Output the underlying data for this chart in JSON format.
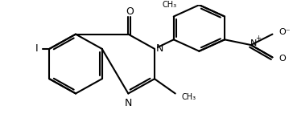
{
  "background_color": "#ffffff",
  "bond_color": "#000000",
  "lw": 1.5,
  "figw": 3.64,
  "figh": 1.52,
  "dpi": 100,
  "atoms": {
    "N_label": "N",
    "N2_label": "N",
    "O_label": "O",
    "I_label": "I",
    "NO2_N_label": "N",
    "NO2_O1_label": "O",
    "NO2_O2_label": "O",
    "CH3_1_label": "CH₃",
    "CH3_2_label": "CH₃"
  },
  "fontsize": 8
}
